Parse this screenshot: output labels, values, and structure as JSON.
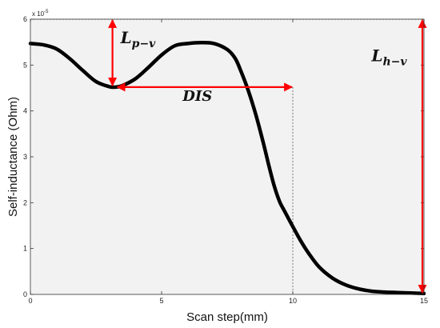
{
  "chart_data": {
    "type": "line",
    "title": "",
    "xlabel": "Scan step(mm)",
    "ylabel": "Self-inductance (Ohm)",
    "y_multiplier_label": "x 10",
    "y_multiplier_exponent": "-5",
    "xlim": [
      0,
      15
    ],
    "ylim": [
      0,
      6
    ],
    "x_ticks": [
      "0",
      "5",
      "10",
      "15"
    ],
    "y_ticks": [
      "0",
      "1",
      "2",
      "3",
      "4",
      "5",
      "6"
    ],
    "grid": false,
    "legend": "none",
    "series": [
      {
        "x": [
          0,
          0.5,
          1.0,
          1.5,
          2.0,
          2.5,
          3.0,
          3.25,
          3.5,
          4.0,
          4.5,
          5.0,
          5.5,
          6.0,
          6.5,
          7.0,
          7.5,
          7.8,
          8.0,
          8.3,
          8.6,
          8.9,
          9.1,
          9.3,
          9.5,
          9.7,
          10.0,
          10.3,
          10.6,
          11.0,
          11.5,
          12.0,
          12.5,
          13.0,
          13.5,
          14.0,
          14.5,
          15.0
        ],
        "y": [
          5.47,
          5.44,
          5.35,
          5.14,
          4.88,
          4.64,
          4.53,
          4.52,
          4.55,
          4.7,
          4.95,
          5.22,
          5.42,
          5.47,
          5.49,
          5.47,
          5.34,
          5.15,
          4.9,
          4.45,
          3.9,
          3.25,
          2.78,
          2.35,
          2.02,
          1.8,
          1.48,
          1.17,
          0.9,
          0.6,
          0.36,
          0.21,
          0.12,
          0.07,
          0.05,
          0.04,
          0.03,
          0.02
        ]
      }
    ],
    "reference_lines": {
      "top_y": 6,
      "dis_end_x": 10,
      "dis_y": 4.52
    },
    "annotations": {
      "lpv": {
        "label_main": "L",
        "label_sub": "p−v",
        "x": 3.25,
        "y_from": 6,
        "y_to": 4.52
      },
      "dis": {
        "label": "DIS",
        "x_from": 3.25,
        "x_to": 10,
        "y": 4.52
      },
      "lhv": {
        "label_main": "L",
        "label_sub": "h−v",
        "x": 15,
        "y_from": 6,
        "y_to": 0.02
      }
    }
  },
  "colors": {
    "plot_background": "#f2f2f2",
    "curve": "#000000",
    "arrow": "#ff0000",
    "ref_line": "#555555"
  }
}
